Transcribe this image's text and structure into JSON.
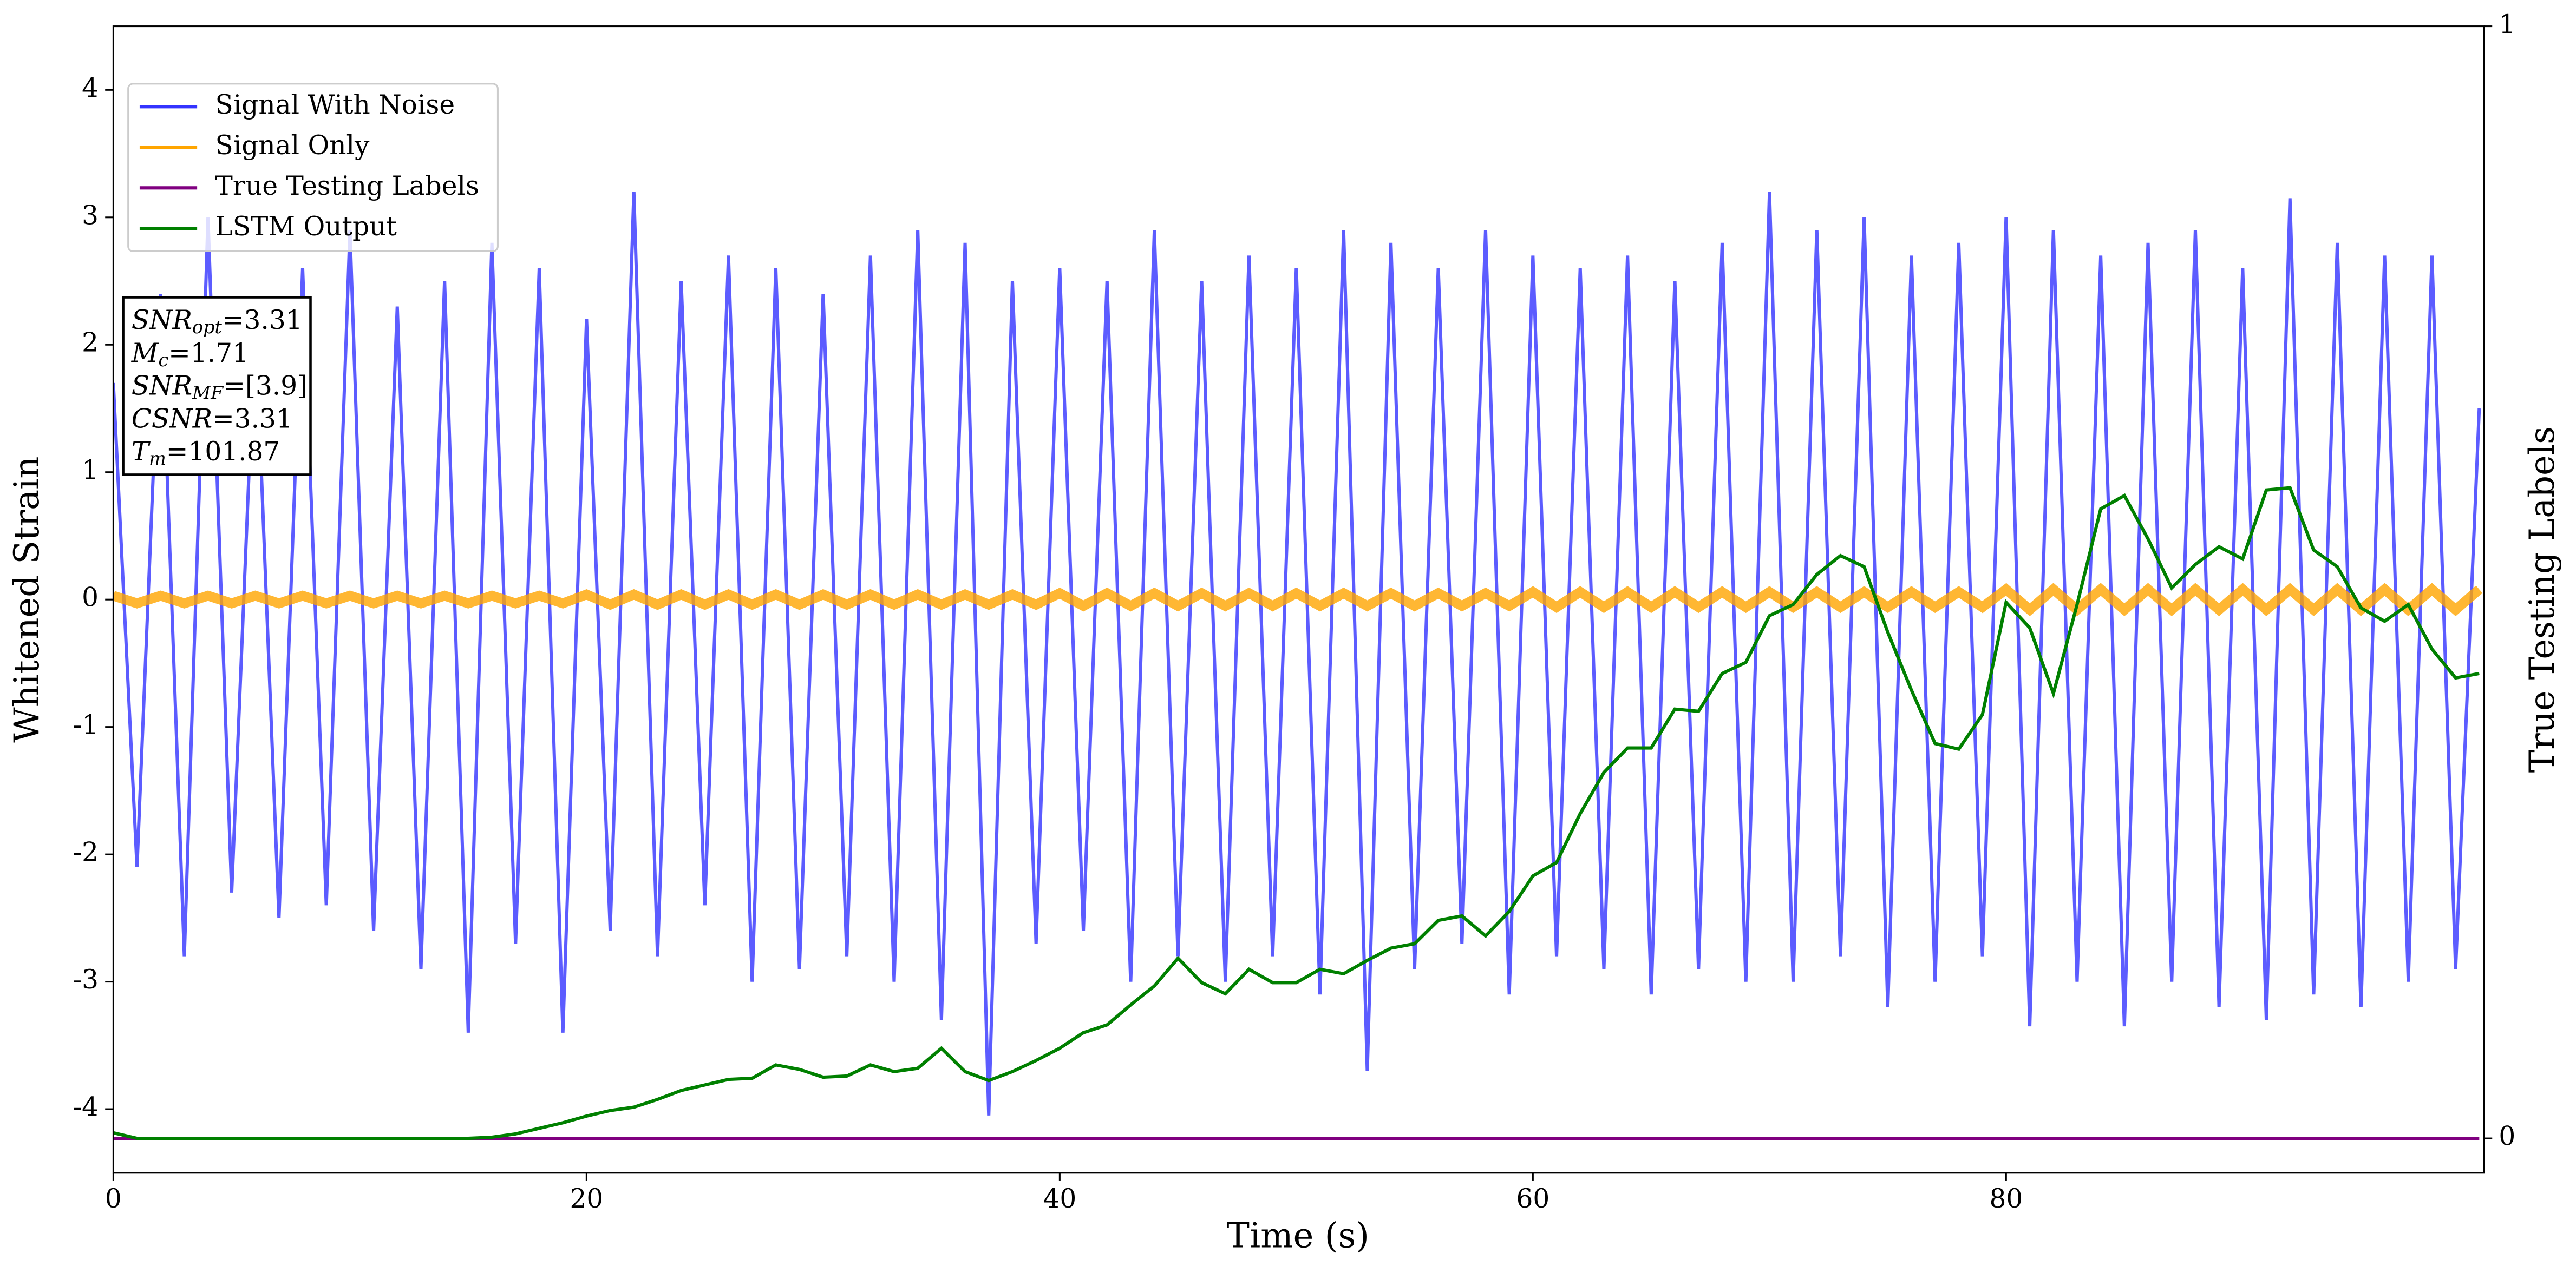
{
  "chart_data": {
    "type": "line",
    "xlabel": "Time (s)",
    "ylabel": "Whitened Strain",
    "y2label": "True Testing Labels",
    "x": [
      0,
      1,
      2,
      3,
      4,
      5,
      6,
      7,
      8,
      9,
      10,
      11,
      12,
      13,
      14,
      15,
      16,
      17,
      18,
      19,
      20,
      21,
      22,
      23,
      24,
      25,
      26,
      27,
      28,
      29,
      30,
      31,
      32,
      33,
      34,
      35,
      36,
      37,
      38,
      39,
      40,
      41,
      42,
      43,
      44,
      45,
      46,
      47,
      48,
      49,
      50,
      51,
      52,
      53,
      54,
      55,
      56,
      57,
      58,
      59,
      60,
      61,
      62,
      63,
      64,
      65,
      66,
      67,
      68,
      69,
      70,
      71,
      72,
      73,
      74,
      75,
      76,
      77,
      78,
      79,
      80,
      81,
      82,
      83,
      84,
      85,
      86,
      87,
      88,
      89,
      90,
      91,
      92,
      93,
      94,
      95,
      96,
      97,
      98,
      99,
      100
    ],
    "series": [
      {
        "name": "Signal With Noise",
        "color": "#3333ff",
        "values": [
          1.7,
          -2.1,
          2.4,
          -2.8,
          3.0,
          -2.3,
          2.2,
          -2.5,
          2.6,
          -2.4,
          2.9,
          -2.6,
          2.3,
          -2.9,
          2.5,
          -3.4,
          2.8,
          -2.7,
          2.6,
          -3.4,
          2.2,
          -2.6,
          3.2,
          -2.8,
          2.5,
          -2.4,
          2.7,
          -3.0,
          2.6,
          -2.9,
          2.4,
          -2.8,
          2.7,
          -3.0,
          2.9,
          -3.3,
          2.8,
          -4.05,
          2.5,
          -2.7,
          2.6,
          -2.6,
          2.5,
          -3.0,
          2.9,
          -2.8,
          2.5,
          -3.0,
          2.7,
          -2.8,
          2.6,
          -3.1,
          2.9,
          -3.7,
          2.8,
          -2.9,
          2.6,
          -2.7,
          2.9,
          -3.1,
          2.7,
          -2.8,
          2.6,
          -2.9,
          2.7,
          -3.1,
          2.5,
          -2.9,
          2.8,
          -3.0,
          3.2,
          -3.0,
          2.9,
          -2.8,
          3.0,
          -3.2,
          2.7,
          -3.0,
          2.8,
          -2.8,
          3.0,
          -3.35,
          2.9,
          -3.0,
          2.7,
          -3.35,
          2.8,
          -3.0,
          2.9,
          -3.2,
          2.6,
          -3.3,
          3.15,
          -3.1,
          2.8,
          -3.2,
          2.7,
          -3.0,
          2.7,
          -2.9,
          1.5
        ]
      },
      {
        "name": "Signal Only",
        "color": "#ffa500",
        "values": [
          0.03,
          -0.03,
          0.03,
          -0.03,
          0.03,
          -0.03,
          0.03,
          -0.03,
          0.03,
          -0.03,
          0.03,
          -0.03,
          0.03,
          -0.03,
          0.03,
          -0.03,
          0.03,
          -0.03,
          0.03,
          -0.03,
          0.04,
          -0.04,
          0.04,
          -0.04,
          0.04,
          -0.04,
          0.04,
          -0.04,
          0.04,
          -0.04,
          0.04,
          -0.04,
          0.04,
          -0.04,
          0.04,
          -0.04,
          0.04,
          -0.04,
          0.04,
          -0.04,
          0.05,
          -0.05,
          0.05,
          -0.05,
          0.05,
          -0.05,
          0.05,
          -0.05,
          0.05,
          -0.05,
          0.05,
          -0.05,
          0.05,
          -0.05,
          0.05,
          -0.05,
          0.05,
          -0.05,
          0.05,
          -0.05,
          0.06,
          -0.06,
          0.06,
          -0.06,
          0.06,
          -0.06,
          0.06,
          -0.06,
          0.06,
          -0.06,
          0.06,
          -0.06,
          0.06,
          -0.06,
          0.06,
          -0.06,
          0.06,
          -0.06,
          0.06,
          -0.06,
          0.08,
          -0.08,
          0.08,
          -0.08,
          0.08,
          -0.08,
          0.08,
          -0.08,
          0.08,
          -0.08,
          0.08,
          -0.08,
          0.08,
          -0.08,
          0.08,
          -0.08,
          0.08,
          -0.08,
          0.08,
          -0.08,
          0.08
        ]
      },
      {
        "name": "True Testing Labels",
        "color": "#800080",
        "axis": "y2",
        "values": [
          0,
          0,
          0,
          0,
          0,
          0,
          0,
          0,
          0,
          0,
          0,
          0,
          0,
          0,
          0,
          0,
          0,
          0,
          0,
          0,
          0,
          0,
          0,
          0,
          0,
          0,
          0,
          0,
          0,
          0,
          0,
          0,
          0,
          0,
          0,
          0,
          0,
          0,
          0,
          0,
          0,
          0,
          0,
          0,
          0,
          0,
          0,
          0,
          0,
          0,
          0,
          0,
          0,
          0,
          0,
          0,
          0,
          0,
          0,
          0,
          0,
          0,
          0,
          0,
          0,
          0,
          0,
          0,
          0,
          0,
          0,
          0,
          0,
          0,
          0,
          0,
          0,
          0,
          0,
          0,
          0,
          0,
          0,
          0,
          0,
          0,
          0,
          0,
          0,
          0,
          0,
          0,
          0,
          0,
          0,
          0,
          0,
          0,
          0,
          0,
          0
        ]
      },
      {
        "name": "LSTM Output",
        "color": "#008000",
        "axis": "y2",
        "values": [
          0.005,
          0,
          0,
          0,
          0,
          0,
          0,
          0,
          0,
          0,
          0,
          0,
          0,
          0,
          0,
          0,
          0.001,
          0.004,
          0.009,
          0.014,
          0.02,
          0.025,
          0.028,
          0.035,
          0.043,
          0.048,
          0.053,
          0.054,
          0.066,
          0.062,
          0.055,
          0.056,
          0.066,
          0.06,
          0.063,
          0.081,
          0.06,
          0.052,
          0.06,
          0.07,
          0.081,
          0.095,
          0.102,
          0.12,
          0.137,
          0.162,
          0.14,
          0.13,
          0.152,
          0.14,
          0.14,
          0.152,
          0.148,
          0.16,
          0.171,
          0.175,
          0.196,
          0.2,
          0.182,
          0.204,
          0.236,
          0.248,
          0.292,
          0.329,
          0.351,
          0.351,
          0.386,
          0.384,
          0.418,
          0.428,
          0.47,
          0.48,
          0.507,
          0.524,
          0.514,
          0.455,
          0.403,
          0.355,
          0.35,
          0.381,
          0.482,
          0.459,
          0.4,
          0.48,
          0.566,
          0.578,
          0.539,
          0.495,
          0.516,
          0.532,
          0.521,
          0.583,
          0.585,
          0.529,
          0.514,
          0.477,
          0.465,
          0.48,
          0.44,
          0.414,
          0.418
        ]
      }
    ],
    "xlim": [
      0,
      100.2
    ],
    "xticks": [
      0,
      20,
      40,
      60,
      80
    ],
    "ylim": [
      -4.5,
      4.5
    ],
    "yticks": [
      -4,
      -3,
      -2,
      -1,
      0,
      1,
      2,
      3,
      4
    ],
    "y2lim": [
      -0.031,
      1
    ],
    "y2ticks": [
      0,
      1
    ],
    "grid": false,
    "legend": "upper left",
    "annotations": [
      {
        "symbol": "SNR",
        "subscript": "opt",
        "text": "=3.31"
      },
      {
        "symbol": "M",
        "subscript": "c",
        "text": "=1.71"
      },
      {
        "symbol": "SNR",
        "subscript": "MF",
        "text": "=[3.9]"
      },
      {
        "symbol": "CSNR",
        "text": "=3.31"
      },
      {
        "symbol": "T",
        "subscript": "m",
        "text": "=101.87"
      }
    ]
  }
}
